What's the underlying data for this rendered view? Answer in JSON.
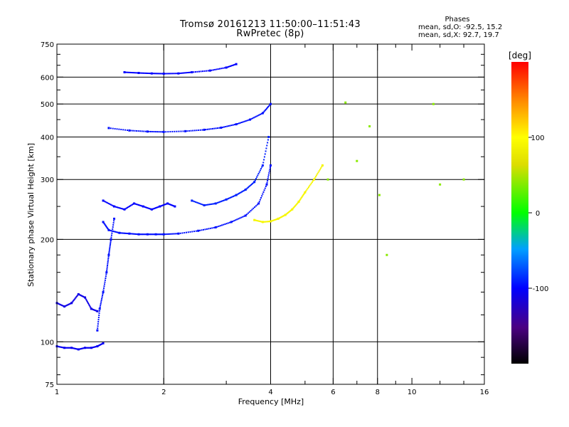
{
  "header": {
    "title": "Tromsø 20161213 11:50:00–11:51:43",
    "subtitle": "RwPretec (8p)"
  },
  "phase_info": {
    "title": "Phases",
    "line_o": "mean, sd,O: -92.5, 15.2",
    "line_x": "mean, sd,X:  92.7, 19.7"
  },
  "colorbar": {
    "unit": "[deg]",
    "min": -200,
    "max": 200,
    "ticks": [
      {
        "v": 100,
        "label": "100"
      },
      {
        "v": 0,
        "label": "0"
      },
      {
        "v": -100,
        "label": "-100"
      }
    ]
  },
  "chart_data": {
    "type": "scatter",
    "title": "Tromsø 20161213 11:50:00–11:51:43",
    "subtitle": "RwPretec (8p)",
    "xlabel": "Frequency [MHz]",
    "ylabel": "Stationary phase Virtual Height [km]",
    "xscale": "log",
    "yscale": "log",
    "xlim": [
      1,
      16
    ],
    "ylim": [
      75,
      750
    ],
    "grid": true,
    "xticks": [
      {
        "v": 1,
        "label": "1"
      },
      {
        "v": 2,
        "label": "2"
      },
      {
        "v": 4,
        "label": "4"
      },
      {
        "v": 6,
        "label": "6"
      },
      {
        "v": 8,
        "label": "8"
      },
      {
        "v": 10,
        "label": "10"
      },
      {
        "v": 16,
        "label": "16"
      }
    ],
    "xminor": [
      3,
      5,
      7,
      9,
      12,
      14
    ],
    "xgrid": [
      2,
      4,
      6,
      8
    ],
    "yticks": [
      {
        "v": 75,
        "label": "75"
      },
      {
        "v": 100,
        "label": "100"
      },
      {
        "v": 200,
        "label": "200"
      },
      {
        "v": 300,
        "label": "300"
      },
      {
        "v": 400,
        "label": "400"
      },
      {
        "v": 500,
        "label": "500"
      },
      {
        "v": 600,
        "label": "600"
      },
      {
        "v": 750,
        "label": "750"
      }
    ],
    "yminor": [
      80,
      90,
      120,
      140,
      160,
      180,
      250,
      350,
      450,
      550,
      650,
      700
    ],
    "ygrid": [
      100,
      200,
      300,
      400,
      500,
      600
    ],
    "color_scale": "phase in degrees, -200 (black) to 200 (red)",
    "series": [
      {
        "trace": "lowest trace",
        "x": [
          1.0,
          1.05,
          1.1,
          1.15,
          1.2,
          1.25,
          1.3,
          1.35
        ],
        "y": [
          97,
          96,
          96,
          95,
          96,
          96,
          97,
          99
        ],
        "phase": -105
      },
      {
        "trace": "low band",
        "x": [
          1.0,
          1.05,
          1.1,
          1.15,
          1.2,
          1.25,
          1.3
        ],
        "y": [
          130,
          127,
          130,
          138,
          135,
          125,
          123
        ],
        "phase": -110
      },
      {
        "trace": "rising edge",
        "x": [
          1.3,
          1.32,
          1.35,
          1.38,
          1.4,
          1.42,
          1.45
        ],
        "y": [
          108,
          125,
          140,
          160,
          180,
          200,
          230
        ],
        "phase": -95
      },
      {
        "trace": "F region O",
        "x": [
          1.35,
          1.4,
          1.5,
          1.6,
          1.7,
          1.8,
          1.9,
          2.0,
          2.2,
          2.5,
          2.8,
          3.1,
          3.4,
          3.7,
          3.9,
          4.0
        ],
        "y": [
          225,
          213,
          209,
          208,
          207,
          207,
          207,
          207,
          208,
          212,
          217,
          225,
          235,
          255,
          290,
          330
        ],
        "phase": -95
      },
      {
        "trace": "F region O scatter",
        "x": [
          1.35,
          1.45,
          1.55,
          1.65,
          1.75,
          1.85,
          1.95,
          2.05,
          2.15
        ],
        "y": [
          260,
          250,
          245,
          255,
          250,
          245,
          250,
          255,
          250
        ],
        "phase": -100
      },
      {
        "trace": "F region O upper",
        "x": [
          2.4,
          2.6,
          2.8,
          3.0,
          3.2,
          3.4,
          3.6,
          3.8,
          3.95
        ],
        "y": [
          260,
          252,
          255,
          262,
          270,
          280,
          295,
          330,
          400
        ],
        "phase": -90
      },
      {
        "trace": "F region X",
        "x": [
          3.6,
          3.8,
          4.0,
          4.2,
          4.4,
          4.6,
          4.8,
          5.0,
          5.3,
          5.6
        ],
        "y": [
          228,
          225,
          226,
          230,
          236,
          245,
          258,
          275,
          300,
          330
        ],
        "phase": 90
      },
      {
        "trace": "second echo",
        "x": [
          1.4,
          1.6,
          1.8,
          2.0,
          2.3,
          2.6,
          2.9,
          3.2,
          3.5,
          3.8,
          4.0
        ],
        "y": [
          425,
          418,
          415,
          414,
          416,
          420,
          426,
          436,
          450,
          470,
          500
        ],
        "phase": -95
      },
      {
        "trace": "third echo",
        "x": [
          1.55,
          1.7,
          1.85,
          2.0,
          2.2,
          2.4,
          2.7,
          3.0,
          3.2
        ],
        "y": [
          620,
          617,
          615,
          614,
          615,
          620,
          627,
          640,
          655
        ],
        "phase": -100
      },
      {
        "trace": "sparse high-frequency points",
        "x": [
          5.8,
          6.5,
          7.0,
          7.6,
          8.1,
          8.5,
          11.5,
          12.0,
          14.0
        ],
        "y": [
          300,
          505,
          340,
          430,
          270,
          180,
          500,
          290,
          300
        ],
        "phase": 40
      }
    ]
  }
}
